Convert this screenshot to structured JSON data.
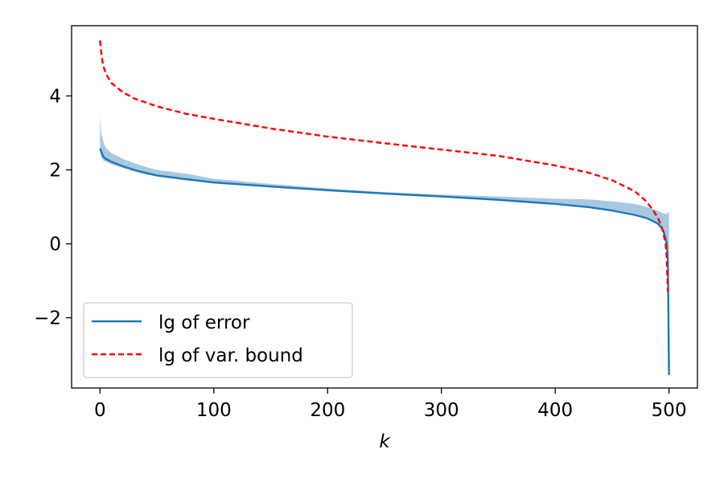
{
  "chart_data": {
    "type": "line",
    "title": "",
    "xlabel": "k",
    "ylabel": "",
    "xlim": [
      -25,
      525
    ],
    "ylim": [
      -3.9,
      5.9
    ],
    "xticks": [
      0,
      100,
      200,
      300,
      400,
      500
    ],
    "xtick_labels": [
      "0",
      "100",
      "200",
      "300",
      "400",
      "500"
    ],
    "yticks": [
      -2,
      0,
      2,
      4
    ],
    "ytick_labels": [
      "−2",
      "0",
      "2",
      "4"
    ],
    "grid": false,
    "legend_position": "lower-left",
    "series": [
      {
        "name": "lg of error",
        "style": "solid",
        "color": "#1f77b4",
        "x": [
          0,
          1,
          3,
          5,
          10,
          20,
          30,
          40,
          50,
          75,
          100,
          150,
          200,
          250,
          300,
          350,
          400,
          430,
          450,
          470,
          480,
          485,
          490,
          493,
          495,
          497,
          498,
          499,
          500
        ],
        "y": [
          2.58,
          2.5,
          2.35,
          2.3,
          2.22,
          2.1,
          2.0,
          1.92,
          1.85,
          1.75,
          1.66,
          1.55,
          1.45,
          1.36,
          1.28,
          1.19,
          1.08,
          0.99,
          0.9,
          0.78,
          0.7,
          0.63,
          0.55,
          0.45,
          0.35,
          0.15,
          0.0,
          -0.5,
          -3.55
        ]
      },
      {
        "name": "lg of var. bound",
        "style": "dashed",
        "color": "#ff0000",
        "x": [
          0,
          1,
          2,
          3,
          5,
          10,
          20,
          30,
          50,
          75,
          100,
          150,
          200,
          250,
          300,
          350,
          400,
          430,
          450,
          470,
          480,
          485,
          490,
          493,
          495,
          497,
          498,
          499
        ],
        "y": [
          5.5,
          5.2,
          4.95,
          4.8,
          4.6,
          4.35,
          4.1,
          3.93,
          3.72,
          3.52,
          3.38,
          3.12,
          2.9,
          2.72,
          2.55,
          2.38,
          2.12,
          1.92,
          1.72,
          1.42,
          1.15,
          0.95,
          0.72,
          0.5,
          0.3,
          0.0,
          -0.4,
          -1.3
        ]
      }
    ],
    "bands": [
      {
        "color": "#1f77b4",
        "x": [
          0,
          1,
          3,
          5,
          10,
          20,
          30,
          40,
          50,
          75,
          100,
          150,
          200,
          250,
          300,
          350,
          400,
          430,
          450,
          470,
          480,
          485,
          490,
          493,
          495,
          497,
          498,
          499,
          500
        ],
        "upper": [
          3.45,
          3.0,
          2.75,
          2.6,
          2.45,
          2.3,
          2.18,
          2.08,
          2.0,
          1.9,
          1.76,
          1.62,
          1.5,
          1.4,
          1.33,
          1.28,
          1.22,
          1.2,
          1.15,
          1.08,
          1.0,
          0.95,
          0.9,
          0.85,
          0.82,
          0.82,
          0.8,
          0.85,
          0.85
        ],
        "lower": [
          2.45,
          2.35,
          2.25,
          2.22,
          2.15,
          2.05,
          1.96,
          1.88,
          1.82,
          1.72,
          1.64,
          1.53,
          1.43,
          1.34,
          1.26,
          1.17,
          1.06,
          0.97,
          0.88,
          0.76,
          0.68,
          0.6,
          0.52,
          0.42,
          0.3,
          0.1,
          -0.05,
          -0.6,
          -3.5
        ]
      }
    ]
  }
}
